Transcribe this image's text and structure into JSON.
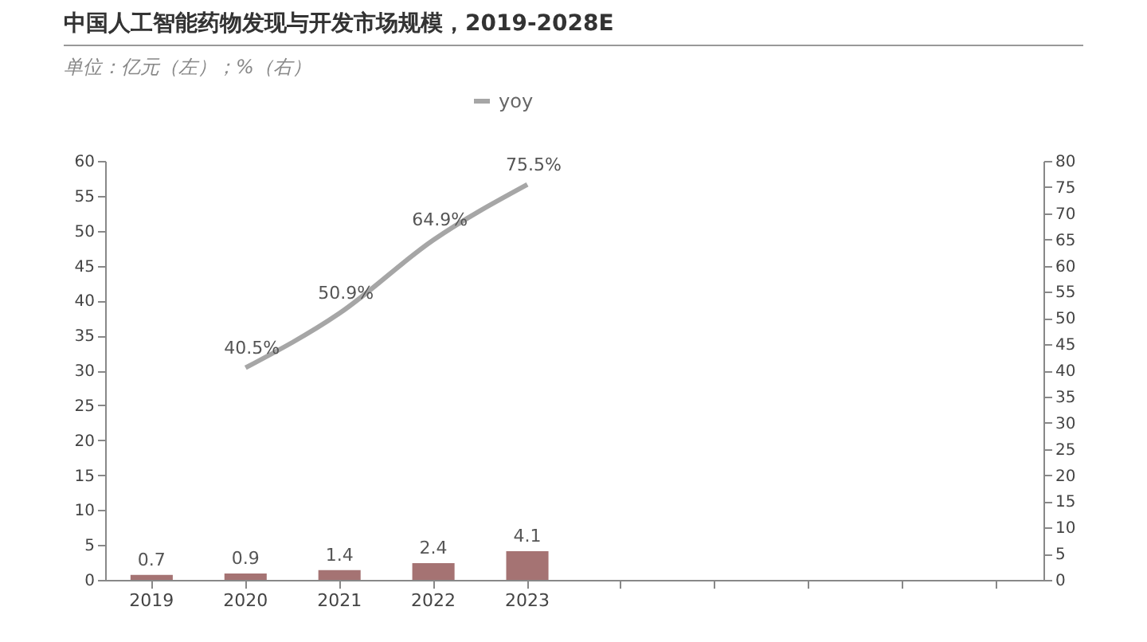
{
  "chart_data": {
    "type": "bar",
    "title": "中国人工智能药物发现与开发市场规模，2019-2028E",
    "subtitle": "单位：亿元（左）；%（右）",
    "categories": [
      "2019",
      "2020",
      "2021",
      "2022",
      "2023",
      null,
      null,
      null,
      null,
      null
    ],
    "series": [
      {
        "color": "#a57373",
        "values": [
          0.7,
          0.9,
          1.4,
          2.4,
          4.1,
          null,
          null,
          null,
          null,
          null
        ],
        "value_labels": [
          "0.7",
          "0.9",
          "1.4",
          "2.4",
          "4.1",
          null,
          null,
          null,
          null,
          null
        ]
      },
      {
        "type": "line",
        "name": "yoy",
        "axis": "y2",
        "color": "#a6a6a6",
        "values": [
          null,
          40.5,
          50.9,
          64.9,
          75.5,
          null,
          null,
          null,
          null,
          null
        ],
        "value_labels": [
          null,
          "40.5%",
          "50.9%",
          "64.9%",
          "75.5%",
          null,
          null,
          null,
          null,
          null
        ]
      }
    ],
    "ylim": [
      0,
      60
    ],
    "yticks": [
      0,
      5,
      10,
      15,
      20,
      25,
      30,
      35,
      40,
      45,
      50,
      55,
      60
    ],
    "y2lim": [
      0,
      80
    ],
    "y2ticks": [
      0,
      5,
      10,
      15,
      20,
      25,
      30,
      35,
      40,
      45,
      50,
      55,
      60,
      65,
      70,
      75,
      80
    ],
    "grid": false,
    "legend": "top",
    "marker": "none",
    "line_style": "solid"
  }
}
